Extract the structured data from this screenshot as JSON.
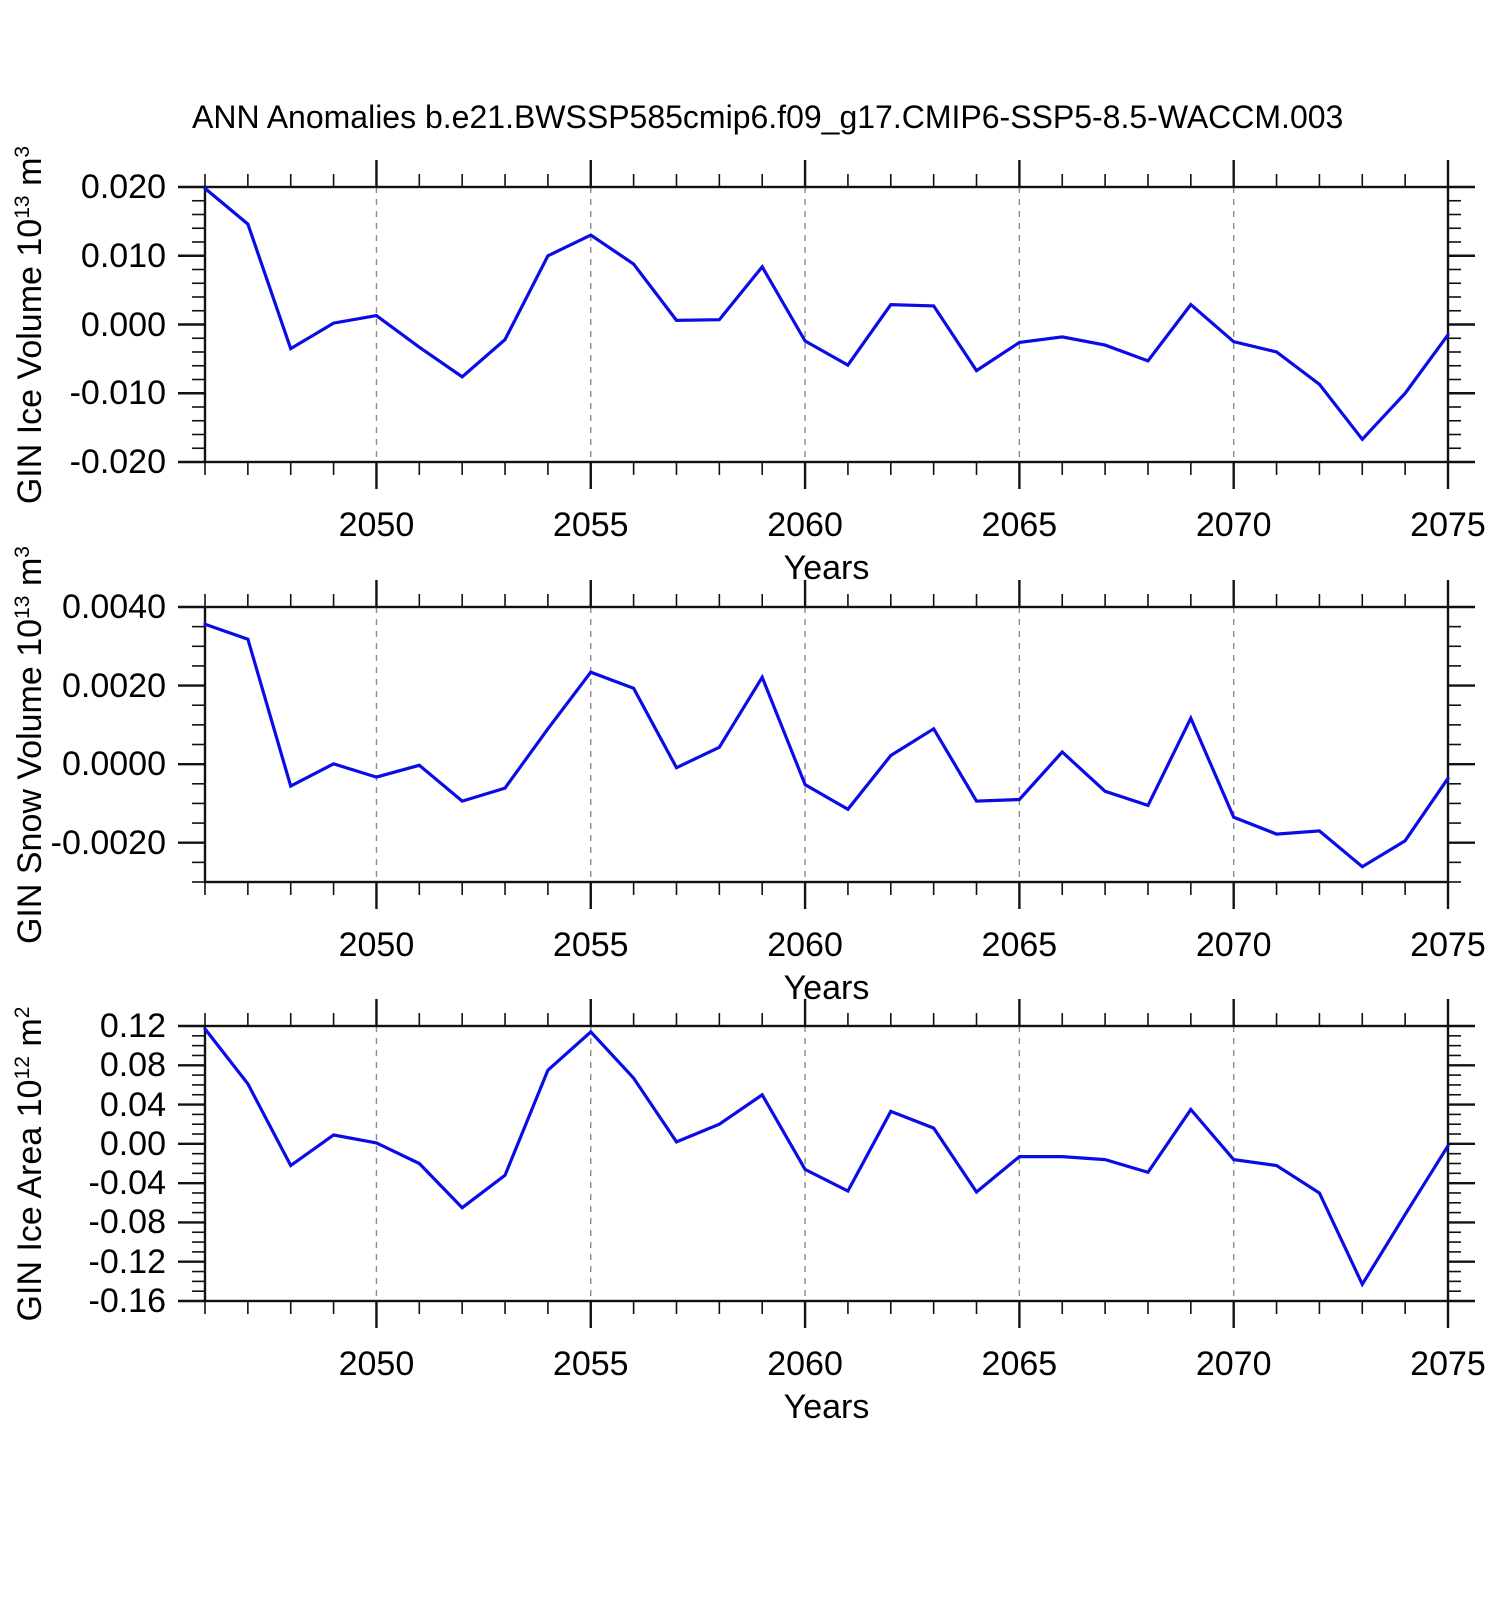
{
  "title": "ANN Anomalies b.e21.BWSSP585cmip6.f09_g17.CMIP6-SSP5-8.5-WACCM.003",
  "colors": {
    "line": "#0b0be8",
    "grid": "#8c8c8c",
    "axis": "#111111",
    "text": "#000000"
  },
  "x_axis": {
    "label": "Years",
    "min": 2046,
    "max": 2075,
    "minor_step": 1,
    "major_ticks": [
      2050,
      2055,
      2060,
      2065,
      2070,
      2075
    ],
    "tick_labels": [
      "2050",
      "2055",
      "2060",
      "2065",
      "2070",
      "2075"
    ],
    "gridline_years": [
      2050,
      2055,
      2060,
      2065,
      2070
    ]
  },
  "years": [
    2046,
    2047,
    2048,
    2049,
    2050,
    2051,
    2052,
    2053,
    2054,
    2055,
    2056,
    2057,
    2058,
    2059,
    2060,
    2061,
    2062,
    2063,
    2064,
    2065,
    2066,
    2067,
    2068,
    2069,
    2070,
    2071,
    2072,
    2073,
    2074,
    2075
  ],
  "chart_data": [
    {
      "type": "line",
      "name": "gin-ice-volume",
      "ylabel_parts": [
        {
          "t": "GIN Ice Volume 10"
        },
        {
          "sup": "13"
        },
        {
          "t": " m"
        },
        {
          "sup": "3"
        }
      ],
      "ymin": -0.02,
      "ymax": 0.02,
      "yminor_step": 0.002,
      "yticks": [
        {
          "v": 0.02,
          "label": "0.020"
        },
        {
          "v": 0.01,
          "label": "0.010"
        },
        {
          "v": 0.0,
          "label": "0.000"
        },
        {
          "v": -0.01,
          "label": "-0.010"
        },
        {
          "v": -0.02,
          "label": "-0.020"
        }
      ],
      "values": [
        0.0198,
        0.0146,
        -0.0035,
        0.0002,
        0.0013,
        -0.0033,
        -0.0076,
        -0.0022,
        0.01,
        0.013,
        0.0088,
        0.0006,
        0.0007,
        0.0084,
        -0.0024,
        -0.0059,
        0.0029,
        0.0027,
        -0.0067,
        -0.0026,
        -0.0018,
        -0.003,
        -0.0053,
        0.0029,
        -0.0025,
        -0.004,
        -0.0087,
        -0.0167,
        -0.01,
        -0.0015
      ]
    },
    {
      "type": "line",
      "name": "gin-snow-volume",
      "ylabel_parts": [
        {
          "t": "GIN Snow Volume 10"
        },
        {
          "sup": "13"
        },
        {
          "t": " m"
        },
        {
          "sup": "3"
        }
      ],
      "ymin": -0.003,
      "ymax": 0.004,
      "yminor_step": 0.0005,
      "yticks": [
        {
          "v": 0.004,
          "label": "0.0040"
        },
        {
          "v": 0.002,
          "label": "0.0020"
        },
        {
          "v": 0.0,
          "label": "0.0000"
        },
        {
          "v": -0.002,
          "label": "-0.0020"
        }
      ],
      "values": [
        0.00356,
        0.00318,
        -0.00056,
        1e-05,
        -0.00033,
        -3e-05,
        -0.00094,
        -0.00061,
        0.0009,
        0.00234,
        0.00193,
        -9e-05,
        0.00043,
        0.00221,
        -0.00052,
        -0.00115,
        0.00022,
        0.0009,
        -0.00094,
        -0.0009,
        0.00031,
        -0.00069,
        -0.00105,
        0.00117,
        -0.00135,
        -0.00178,
        -0.0017,
        -0.00261,
        -0.00195,
        -0.00036
      ]
    },
    {
      "type": "line",
      "name": "gin-ice-area",
      "ylabel_parts": [
        {
          "t": "GIN Ice Area 10"
        },
        {
          "sup": "12"
        },
        {
          "t": " m"
        },
        {
          "sup": "2"
        }
      ],
      "ymin": -0.16,
      "ymax": 0.12,
      "yminor_step": 0.01,
      "yticks": [
        {
          "v": 0.12,
          "label": "0.12"
        },
        {
          "v": 0.08,
          "label": "0.08"
        },
        {
          "v": 0.04,
          "label": "0.04"
        },
        {
          "v": 0.0,
          "label": "0.00"
        },
        {
          "v": -0.04,
          "label": "-0.04"
        },
        {
          "v": -0.08,
          "label": "-0.08"
        },
        {
          "v": -0.12,
          "label": "-0.12"
        },
        {
          "v": -0.16,
          "label": "-0.16"
        }
      ],
      "values": [
        0.117,
        0.061,
        -0.022,
        0.009,
        0.001,
        -0.02,
        -0.065,
        -0.032,
        0.075,
        0.114,
        0.067,
        0.002,
        0.02,
        0.05,
        -0.026,
        -0.048,
        0.033,
        0.016,
        -0.049,
        -0.013,
        -0.013,
        -0.016,
        -0.029,
        0.035,
        -0.016,
        -0.022,
        -0.05,
        -0.143,
        -0.072,
        -0.002
      ]
    }
  ]
}
